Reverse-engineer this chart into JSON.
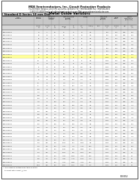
{
  "title_company": "MDE Semiconductors, Inc. Circuit Protection Products",
  "title_addr1": "72-210 Noble Tampico, Unit 37B, La Quinta, CA 92253 Tel: (760)564-6688 Fax: (760)564-4615",
  "title_addr2": "1-800-531-4028 Email: sales@mdesemiconductor.com Web: www.mdesemiconductor.com",
  "section_title": "Metal Oxide Varistors",
  "subtitle": "Standard D Series 10 mm Disc",
  "background_color": "#ffffff",
  "border_color": "#000000",
  "header_bg": "#d0d0d0",
  "row_alt_bg": "#e8e8e8",
  "row_bg": "#f5f5f5",
  "rows": [
    [
      "MDE-10D180K",
      "18",
      "11",
      "14",
      "36",
      "26",
      "39",
      "0.2",
      "",
      "600",
      "200",
      "0.25",
      "500"
    ],
    [
      "MDE-10D200K",
      "20",
      "12",
      "16",
      "40",
      "29",
      "43",
      "0.2",
      "",
      "600",
      "200",
      "0.25",
      "500"
    ],
    [
      "MDE-10D220K",
      "22",
      "14",
      "18",
      "44",
      "32",
      "47",
      "0.3",
      "",
      "600",
      "200",
      "0.25",
      "500"
    ],
    [
      "MDE-10D240K",
      "24",
      "15",
      "20",
      "47",
      "35",
      "51",
      "0.3",
      "",
      "600",
      "200",
      "0.25",
      "450"
    ],
    [
      "MDE-10D270K",
      "27",
      "17",
      "22",
      "54",
      "39",
      "57",
      "0.4",
      "",
      "600",
      "200",
      "0.25",
      "450"
    ],
    [
      "MDE-10D300K",
      "30",
      "18",
      "25",
      "60",
      "43",
      "63",
      "0.4",
      "",
      "600",
      "200",
      "0.25",
      "420"
    ],
    [
      "MDE-10D330K",
      "33",
      "20",
      "26",
      "66",
      "47",
      "69",
      "0.5",
      "",
      "600",
      "200",
      "0.25",
      "420"
    ],
    [
      "MDE-10D360K",
      "36",
      "22",
      "28",
      "72",
      "52",
      "76",
      "0.5",
      "",
      "600",
      "200",
      "0.25",
      "390"
    ],
    [
      "MDE-10D390K",
      "39",
      "24",
      "31",
      "78",
      "56",
      "82",
      "0.6",
      "",
      "1000",
      "400",
      "0.25",
      "390"
    ],
    [
      "MDE-10D430K",
      "43",
      "27",
      "33",
      "86",
      "61",
      "91",
      "0.6",
      "",
      "1000",
      "400",
      "0.25",
      "360"
    ],
    [
      "MDE-10D470K",
      "47",
      "30",
      "36",
      "94",
      "67",
      "99",
      "0.7",
      "",
      "1000",
      "400",
      "0.25",
      "360"
    ],
    [
      "MDE-10D510K",
      "51",
      "32",
      "40",
      "102",
      "73",
      "107",
      "0.8",
      "",
      "1000",
      "400",
      "0.25",
      "330"
    ],
    [
      "MDE-10D560K",
      "56",
      "35",
      "40",
      "112",
      "80",
      "118",
      "0.9",
      "",
      "1000",
      "400",
      "0.25",
      "330"
    ],
    [
      "MDE-10D620K",
      "62",
      "38",
      "44",
      "124",
      "88",
      "130",
      "1.0",
      "",
      "1000",
      "400",
      "0.25",
      "300"
    ],
    [
      "MDE-10D680K",
      "68",
      "42",
      "50",
      "135",
      "97",
      "143",
      "1.1",
      "",
      "1000",
      "400",
      "0.25",
      "300"
    ],
    [
      "MDE-10D750K",
      "75",
      "47",
      "56",
      "150",
      "107",
      "157",
      "1.3",
      "",
      "1000",
      "400",
      "0.25",
      "275"
    ],
    [
      "MDE-10D820K",
      "82",
      "50",
      "60",
      "164",
      "117",
      "171",
      "1.4",
      "",
      "1000",
      "400",
      "0.25",
      "275"
    ],
    [
      "MDE-10D910K",
      "91",
      "56",
      "65",
      "182",
      "130",
      "190",
      "1.6",
      "",
      "1000",
      "400",
      "0.25",
      "250"
    ],
    [
      "MDE-10D101K",
      "100",
      "60",
      "70",
      "200",
      "143",
      "209",
      "1.7",
      "",
      "1000",
      "400",
      "0.25",
      "250"
    ],
    [
      "MDE-10D111K",
      "110",
      "65",
      "80",
      "220",
      "157",
      "230",
      "2.0",
      "",
      "1000",
      "400",
      "0.25",
      "225"
    ],
    [
      "MDE-10D121K",
      "120",
      "75",
      "85",
      "240",
      "171",
      "251",
      "2.2",
      "",
      "1000",
      "400",
      "0.25",
      "225"
    ],
    [
      "MDE-10D131K",
      "130",
      "82",
      "90",
      "260",
      "186",
      "272",
      "2.4",
      "",
      "1000",
      "400",
      "0.25",
      "200"
    ],
    [
      "MDE-10D151K",
      "150",
      "95",
      "105",
      "300",
      "214",
      "314",
      "2.8",
      "",
      "1000",
      "400",
      "0.25",
      "200"
    ],
    [
      "MDE-10D161K",
      "160",
      "100",
      "115",
      "320",
      "228",
      "335",
      "3.0",
      "",
      "1000",
      "400",
      "0.25",
      "180"
    ],
    [
      "MDE-10D181K",
      "180",
      "115",
      "130",
      "360",
      "257",
      "376",
      "3.4",
      "",
      "1000",
      "400",
      "0.25",
      "180"
    ],
    [
      "MDE-10D201K",
      "200",
      "125",
      "150",
      "400",
      "285",
      "418",
      "3.8",
      "",
      "1000",
      "400",
      "0.25",
      "160"
    ],
    [
      "MDE-10D221K",
      "220",
      "140",
      "160",
      "440",
      "314",
      "460",
      "4.2",
      "",
      "1000",
      "400",
      "0.25",
      "160"
    ],
    [
      "MDE-10D241K",
      "240",
      "150",
      "175",
      "480",
      "342",
      "501",
      "4.6",
      "",
      "1000",
      "400",
      "0.25",
      "150"
    ],
    [
      "MDE-10D271K",
      "270",
      "175",
      "200",
      "540",
      "385",
      "564",
      "5.2",
      "",
      "1000",
      "400",
      "0.25",
      "150"
    ],
    [
      "MDE-10D301K",
      "300",
      "190",
      "220",
      "600",
      "428",
      "627",
      "5.8",
      "",
      "1000",
      "400",
      "0.25",
      "130"
    ],
    [
      "MDE-10D331K",
      "330",
      "210",
      "240",
      "660",
      "470",
      "690",
      "6.4",
      "",
      "1000",
      "400",
      "0.25",
      "130"
    ],
    [
      "MDE-10D361K",
      "360",
      "230",
      "260",
      "720",
      "513",
      "752",
      "7.0",
      "",
      "1000",
      "400",
      "0.25",
      "120"
    ],
    [
      "MDE-10D391K",
      "390",
      "250",
      "280",
      "780",
      "556",
      "815",
      "7.5",
      "",
      "1000",
      "400",
      "0.25",
      "120"
    ],
    [
      "MDE-10D431K",
      "430",
      "275",
      "310",
      "860",
      "613",
      "898",
      "8.3",
      "",
      "1000",
      "400",
      "0.25",
      "110"
    ],
    [
      "MDE-10D471K",
      "470",
      "300",
      "340",
      "940",
      "670",
      "982",
      "9.1",
      "",
      "1000",
      "400",
      "0.25",
      "110"
    ],
    [
      "MDE-10D511K",
      "510",
      "320",
      "370",
      "1020",
      "727",
      "1065",
      "9.9",
      "",
      "1000",
      "400",
      "0.25",
      "100"
    ],
    [
      "MDE-10D561K",
      "560",
      "350",
      "400",
      "1120",
      "799",
      "1170",
      "10.9",
      "",
      "1000",
      "400",
      "0.25",
      "100"
    ],
    [
      "MDE-10D621K",
      "620",
      "385",
      "440",
      "1240",
      "884",
      "1295",
      "12.0",
      "",
      "1000",
      "400",
      "0.25",
      "90"
    ],
    [
      "MDE-10D681K",
      "680",
      "420",
      "480",
      "1360",
      "970",
      "1421",
      "13.2",
      "",
      "1000",
      "400",
      "0.25",
      "90"
    ],
    [
      "MDE-10D751K",
      "750",
      "460",
      "530",
      "1500",
      "1070",
      "1567",
      "14.5",
      "",
      "1000",
      "400",
      "0.25",
      "80"
    ],
    [
      "MDE-10D821K",
      "820",
      "510",
      "580",
      "1640",
      "1170",
      "1714",
      "15.9",
      "",
      "1000",
      "400",
      "0.25",
      "80"
    ],
    [
      "MDE-10D911K",
      "910",
      "575",
      "640",
      "1820",
      "1299",
      "1903",
      "17.7",
      "",
      "1000",
      "400",
      "0.25",
      "70"
    ],
    [
      "MDE-10D102K",
      "1000",
      "625",
      "700",
      "2000",
      "1427",
      "2090",
      "19.4",
      "",
      "1000",
      "400",
      "0.25",
      "60"
    ]
  ],
  "footnote": "* The clamping voltage from table is obtain",
  "footnote2": "  to select with current @ this.",
  "doc_number": "0103052"
}
